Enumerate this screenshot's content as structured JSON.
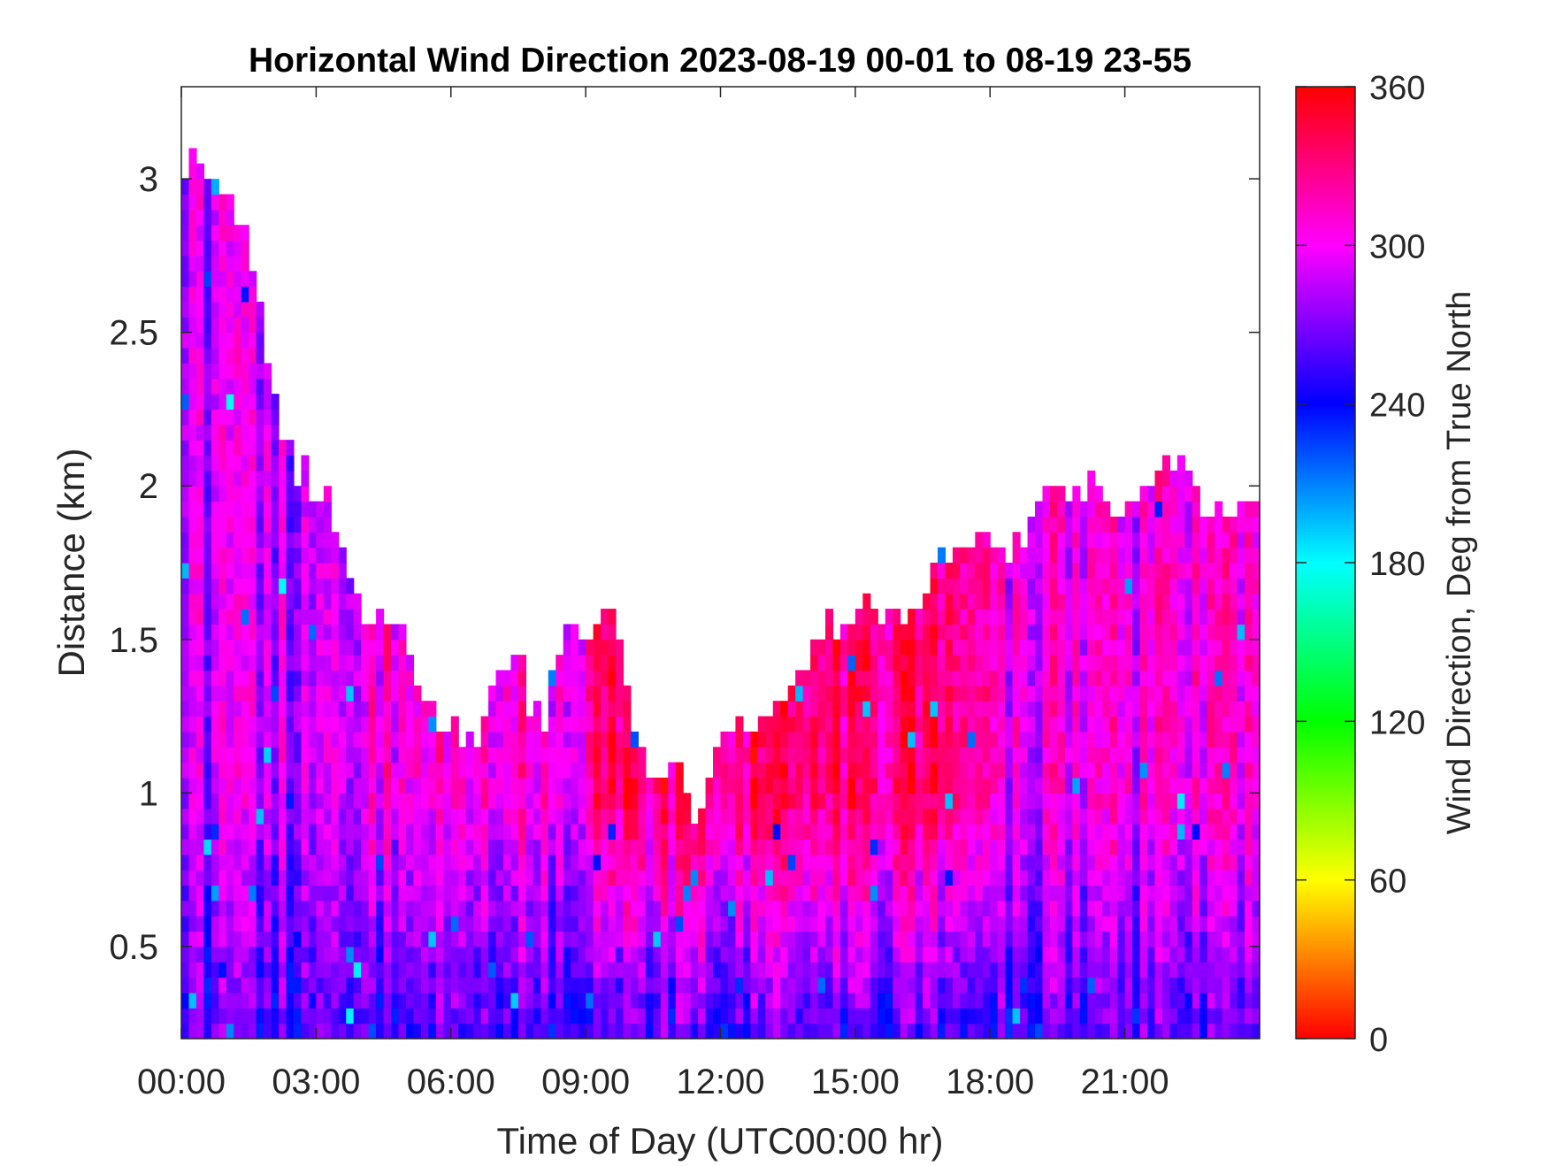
{
  "chart_data": {
    "type": "heatmap",
    "title": "Horizontal Wind Direction 2023-08-19 00-01 to 08-19 23-55",
    "xlabel": "Time of Day (UTC00:00 hr)",
    "ylabel": "Distance (km)",
    "colorbar_label": "Wind Direction, Deg from True North",
    "xlim": [
      0,
      24
    ],
    "ylim": [
      0.2,
      3.3
    ],
    "x_ticks": [
      0,
      3,
      6,
      9,
      12,
      15,
      18,
      21
    ],
    "x_tick_labels": [
      "00:00",
      "03:00",
      "06:00",
      "09:00",
      "12:00",
      "15:00",
      "18:00",
      "21:00"
    ],
    "y_ticks": [
      0.5,
      1,
      1.5,
      2,
      2.5,
      3
    ],
    "y_tick_labels": [
      "0.5",
      "1",
      "1.5",
      "2",
      "2.5",
      "3"
    ],
    "colorbar_range": [
      0,
      360
    ],
    "colorbar_ticks": [
      0,
      60,
      120,
      180,
      240,
      300,
      360
    ],
    "colorbar_tick_labels": [
      "0",
      "60",
      "120",
      "180",
      "240",
      "300",
      "360"
    ],
    "colormap": "hsv",
    "colormap_stops": [
      {
        "value": 0,
        "color": "#ff0000"
      },
      {
        "value": 60,
        "color": "#ffff00"
      },
      {
        "value": 120,
        "color": "#00ff00"
      },
      {
        "value": 180,
        "color": "#00ffff"
      },
      {
        "value": 240,
        "color": "#0000ff"
      },
      {
        "value": 300,
        "color": "#ff00ff"
      },
      {
        "value": 360,
        "color": "#ff0000"
      }
    ],
    "grid": false,
    "max_height_profile": {
      "time_hr": [
        0,
        0.3,
        1,
        1.5,
        2,
        2.5,
        3,
        3.5,
        4,
        5,
        5.5,
        6,
        6.5,
        7,
        7.5,
        8,
        8.5,
        9,
        9.5,
        10,
        10.5,
        11,
        11.5,
        12,
        12.5,
        13,
        13.5,
        14,
        15,
        16,
        17,
        18,
        18.5,
        19,
        19.5,
        20,
        20.5,
        21,
        21.5,
        22,
        22.5,
        23,
        23.5,
        24
      ],
      "top_km": [
        2.9,
        3.1,
        2.9,
        2.75,
        2.3,
        2.05,
        1.95,
        1.85,
        1.6,
        1.5,
        1.25,
        1.2,
        1.1,
        1.4,
        1.45,
        1.15,
        1.55,
        1.5,
        1.55,
        1.3,
        0.95,
        1.05,
        0.9,
        1.15,
        1.2,
        1.25,
        1.3,
        1.45,
        1.6,
        1.55,
        1.75,
        1.85,
        1.75,
        1.95,
        1.9,
        1.95,
        2.0,
        1.85,
        2.05,
        2.05,
        1.95,
        1.85,
        1.95,
        1.85
      ]
    },
    "direction_regimes": [
      {
        "time_hr": [
          0,
          4
        ],
        "typical_direction_deg": 285
      },
      {
        "time_hr": [
          4,
          9
        ],
        "typical_direction_deg": 305
      },
      {
        "time_hr": [
          9,
          13
        ],
        "typical_direction_deg": 335
      },
      {
        "time_hr": [
          13,
          18
        ],
        "typical_direction_deg": 330
      },
      {
        "time_hr": [
          18,
          24
        ],
        "typical_direction_deg": 300
      }
    ],
    "low_level_direction_deg": 255
  }
}
